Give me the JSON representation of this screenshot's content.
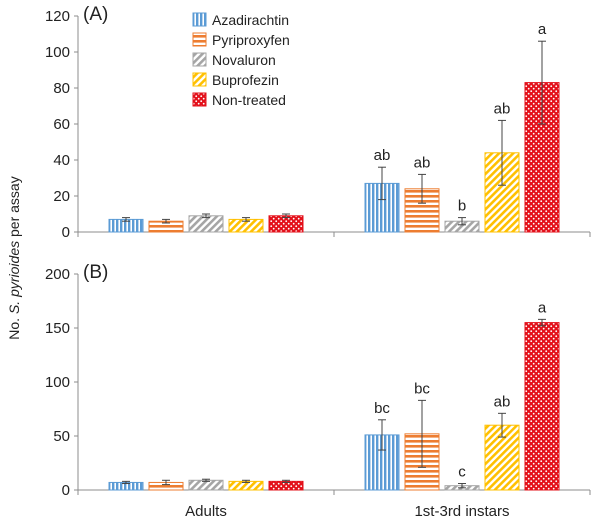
{
  "chart_data": {
    "type": "bar",
    "ylabel_prefix": "No. ",
    "ylabel_species": "S. pyrioides",
    "ylabel_suffix": " per assay",
    "categories": [
      "Adults",
      "1st-3rd instars"
    ],
    "series": [
      {
        "name": "Azadirachtin",
        "color": "#5b9bd5",
        "pattern": "vertical-stripes"
      },
      {
        "name": "Pyriproxyfen",
        "color": "#ed7d31",
        "pattern": "horizontal-stripes"
      },
      {
        "name": "Novaluron",
        "color": "#a5a5a5",
        "pattern": "diagonal-stripes"
      },
      {
        "name": "Buprofezin",
        "color": "#ffc000",
        "pattern": "diagonal-stripes"
      },
      {
        "name": "Non-treated",
        "color": "#e3101a",
        "pattern": "dots"
      }
    ],
    "legend_position": "top-left",
    "panels": [
      {
        "label": "(A)",
        "ylim": [
          0,
          120
        ],
        "yticks": [
          0,
          20,
          40,
          60,
          80,
          100,
          120
        ],
        "values": [
          [
            7,
            27
          ],
          [
            6,
            24
          ],
          [
            9,
            6
          ],
          [
            7,
            44
          ],
          [
            9,
            83
          ]
        ],
        "errors": [
          [
            1,
            9
          ],
          [
            1,
            8
          ],
          [
            1,
            2
          ],
          [
            1,
            18
          ],
          [
            1,
            23
          ]
        ],
        "letters": [
          [
            "",
            "ab"
          ],
          [
            "",
            "ab"
          ],
          [
            "",
            "b"
          ],
          [
            "",
            "ab"
          ],
          [
            "",
            "a"
          ]
        ]
      },
      {
        "label": "(B)",
        "ylim": [
          0,
          200
        ],
        "yticks": [
          0,
          50,
          100,
          150,
          200
        ],
        "values": [
          [
            7,
            51
          ],
          [
            7,
            52
          ],
          [
            9,
            4
          ],
          [
            8,
            60
          ],
          [
            8,
            155
          ]
        ],
        "errors": [
          [
            1,
            14
          ],
          [
            2,
            31
          ],
          [
            1,
            2
          ],
          [
            1,
            11
          ],
          [
            1,
            3
          ]
        ],
        "letters": [
          [
            "",
            "bc"
          ],
          [
            "",
            "bc"
          ],
          [
            "",
            "c"
          ],
          [
            "",
            "ab"
          ],
          [
            "",
            "a"
          ]
        ]
      }
    ]
  }
}
